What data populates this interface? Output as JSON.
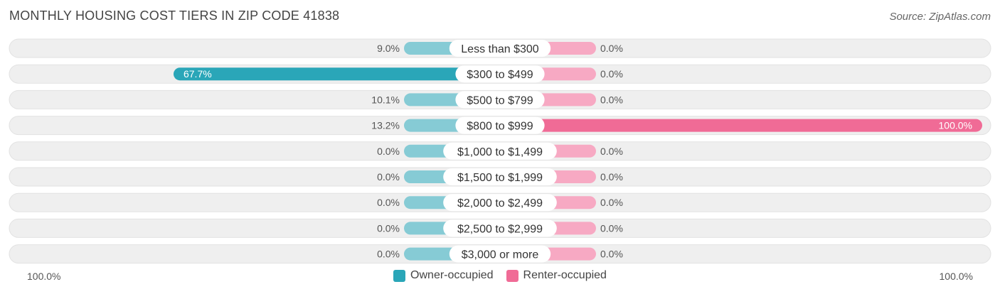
{
  "title": "MONTHLY HOUSING COST TIERS IN ZIP CODE 41838",
  "source": "Source: ZipAtlas.com",
  "colors": {
    "owner": "#2aa6b8",
    "owner_light": "#86cbd5",
    "renter": "#f06b96",
    "renter_light": "#f7a9c3"
  },
  "footer": {
    "left": "100.0%",
    "right": "100.0%"
  },
  "legend": {
    "owner": "Owner-occupied",
    "renter": "Renter-occupied"
  },
  "chart_data": {
    "type": "bar",
    "orientation": "diverging-horizontal",
    "categories": [
      "Less than $300",
      "$300 to $499",
      "$500 to $799",
      "$800 to $999",
      "$1,000 to $1,499",
      "$1,500 to $1,999",
      "$2,000 to $2,499",
      "$2,500 to $2,999",
      "$3,000 or more"
    ],
    "series": [
      {
        "name": "Owner-occupied",
        "values": [
          9.0,
          67.7,
          10.1,
          13.2,
          0.0,
          0.0,
          0.0,
          0.0,
          0.0
        ],
        "labels": [
          "9.0%",
          "67.7%",
          "10.1%",
          "13.2%",
          "0.0%",
          "0.0%",
          "0.0%",
          "0.0%",
          "0.0%"
        ]
      },
      {
        "name": "Renter-occupied",
        "values": [
          0.0,
          0.0,
          0.0,
          100.0,
          0.0,
          0.0,
          0.0,
          0.0,
          0.0
        ],
        "labels": [
          "0.0%",
          "0.0%",
          "0.0%",
          "100.0%",
          "0.0%",
          "0.0%",
          "0.0%",
          "0.0%",
          "0.0%"
        ]
      }
    ],
    "xlim": [
      0,
      100
    ]
  }
}
